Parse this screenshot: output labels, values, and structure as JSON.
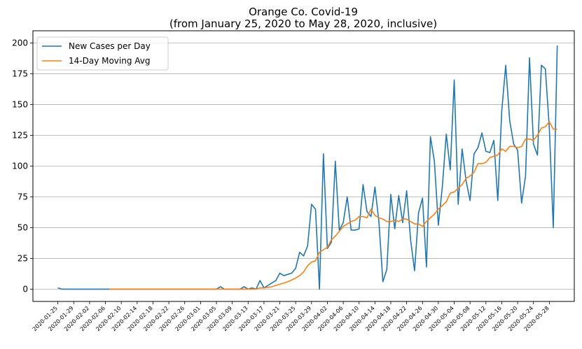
{
  "chart_data": {
    "type": "line",
    "title": "Orange Co. Covid-19",
    "subtitle": "(from January 25, 2020 to May 28, 2020, inclusive)",
    "xlabel": "",
    "ylabel": "",
    "ylim": [
      -10,
      210
    ],
    "yticks": [
      0,
      25,
      50,
      75,
      100,
      125,
      150,
      175,
      200
    ],
    "grid": "horizontal",
    "legend_position": "top-left",
    "x_start": "2020-01-25",
    "x_end": "2020-05-28",
    "xticks": [
      "2020-01-25",
      "2020-01-29",
      "2020-02-02",
      "2020-02-06",
      "2020-02-10",
      "2020-02-14",
      "2020-02-18",
      "2020-02-22",
      "2020-02-26",
      "2020-03-01",
      "2020-03-05",
      "2020-03-09",
      "2020-03-13",
      "2020-03-17",
      "2020-03-21",
      "2020-03-25",
      "2020-03-29",
      "2020-04-02",
      "2020-04-06",
      "2020-04-10",
      "2020-04-14",
      "2020-04-18",
      "2020-04-22",
      "2020-04-26",
      "2020-04-30",
      "2020-05-04",
      "2020-05-08",
      "2020-05-12",
      "2020-05-16",
      "2020-05-20",
      "2020-05-24",
      "2020-05-28"
    ],
    "series": [
      {
        "name": "New Cases per Day",
        "color": "#1f77b4",
        "start_date": "2020-01-25",
        "values": [
          1,
          0,
          0,
          0,
          0,
          0,
          0,
          0,
          0,
          0,
          0,
          0,
          0,
          0,
          0,
          0,
          0,
          0,
          0,
          0,
          0,
          0,
          0,
          0,
          0,
          0,
          0,
          0,
          0,
          0,
          0,
          0,
          0,
          0,
          0,
          0,
          0,
          0,
          0,
          0,
          0,
          2,
          0,
          0,
          0,
          0,
          0,
          2,
          0,
          1,
          0,
          7,
          1,
          3,
          5,
          7,
          13,
          11,
          12,
          13,
          17,
          30,
          27,
          35,
          69,
          65,
          0,
          110,
          33,
          38,
          104,
          48,
          54,
          75,
          48,
          48,
          49,
          85,
          63,
          59,
          83,
          55,
          6,
          16,
          77,
          49,
          76,
          54,
          80,
          40,
          15,
          62,
          74,
          18,
          124,
          104,
          52,
          83,
          126,
          97,
          170,
          69,
          114,
          88,
          72,
          110,
          115,
          127,
          112,
          111,
          121,
          72,
          145,
          182,
          137,
          118,
          113,
          70,
          92,
          188,
          118,
          109,
          182,
          179,
          131,
          50,
          198
        ]
      },
      {
        "name": "14-Day Moving Avg",
        "color": "#ff7f0e",
        "start_date": "2020-02-07",
        "values": [
          0,
          0,
          0,
          0,
          0,
          0,
          0,
          0,
          0,
          0,
          0,
          0,
          0,
          0,
          0,
          0,
          0,
          0,
          0,
          0,
          0,
          0,
          0,
          0,
          0,
          0,
          0,
          0,
          0,
          0,
          0,
          0,
          0,
          0,
          0,
          0,
          0,
          0,
          1,
          1,
          1.5,
          2,
          3,
          4,
          5,
          6,
          7.5,
          9,
          11,
          14,
          19,
          22,
          23,
          30,
          32,
          34,
          40,
          43,
          47,
          51,
          53,
          55,
          56,
          59,
          59,
          58,
          65,
          60,
          58,
          57,
          55,
          55,
          56,
          55,
          57,
          57,
          55,
          53,
          53,
          51,
          55,
          58,
          61,
          65,
          68,
          71,
          78,
          79,
          82,
          85,
          90,
          92,
          95,
          102,
          102,
          103,
          107,
          108,
          109,
          114,
          112,
          116,
          116,
          115,
          116,
          122,
          122,
          121,
          125,
          131,
          132,
          136,
          130,
          130
        ]
      }
    ]
  }
}
